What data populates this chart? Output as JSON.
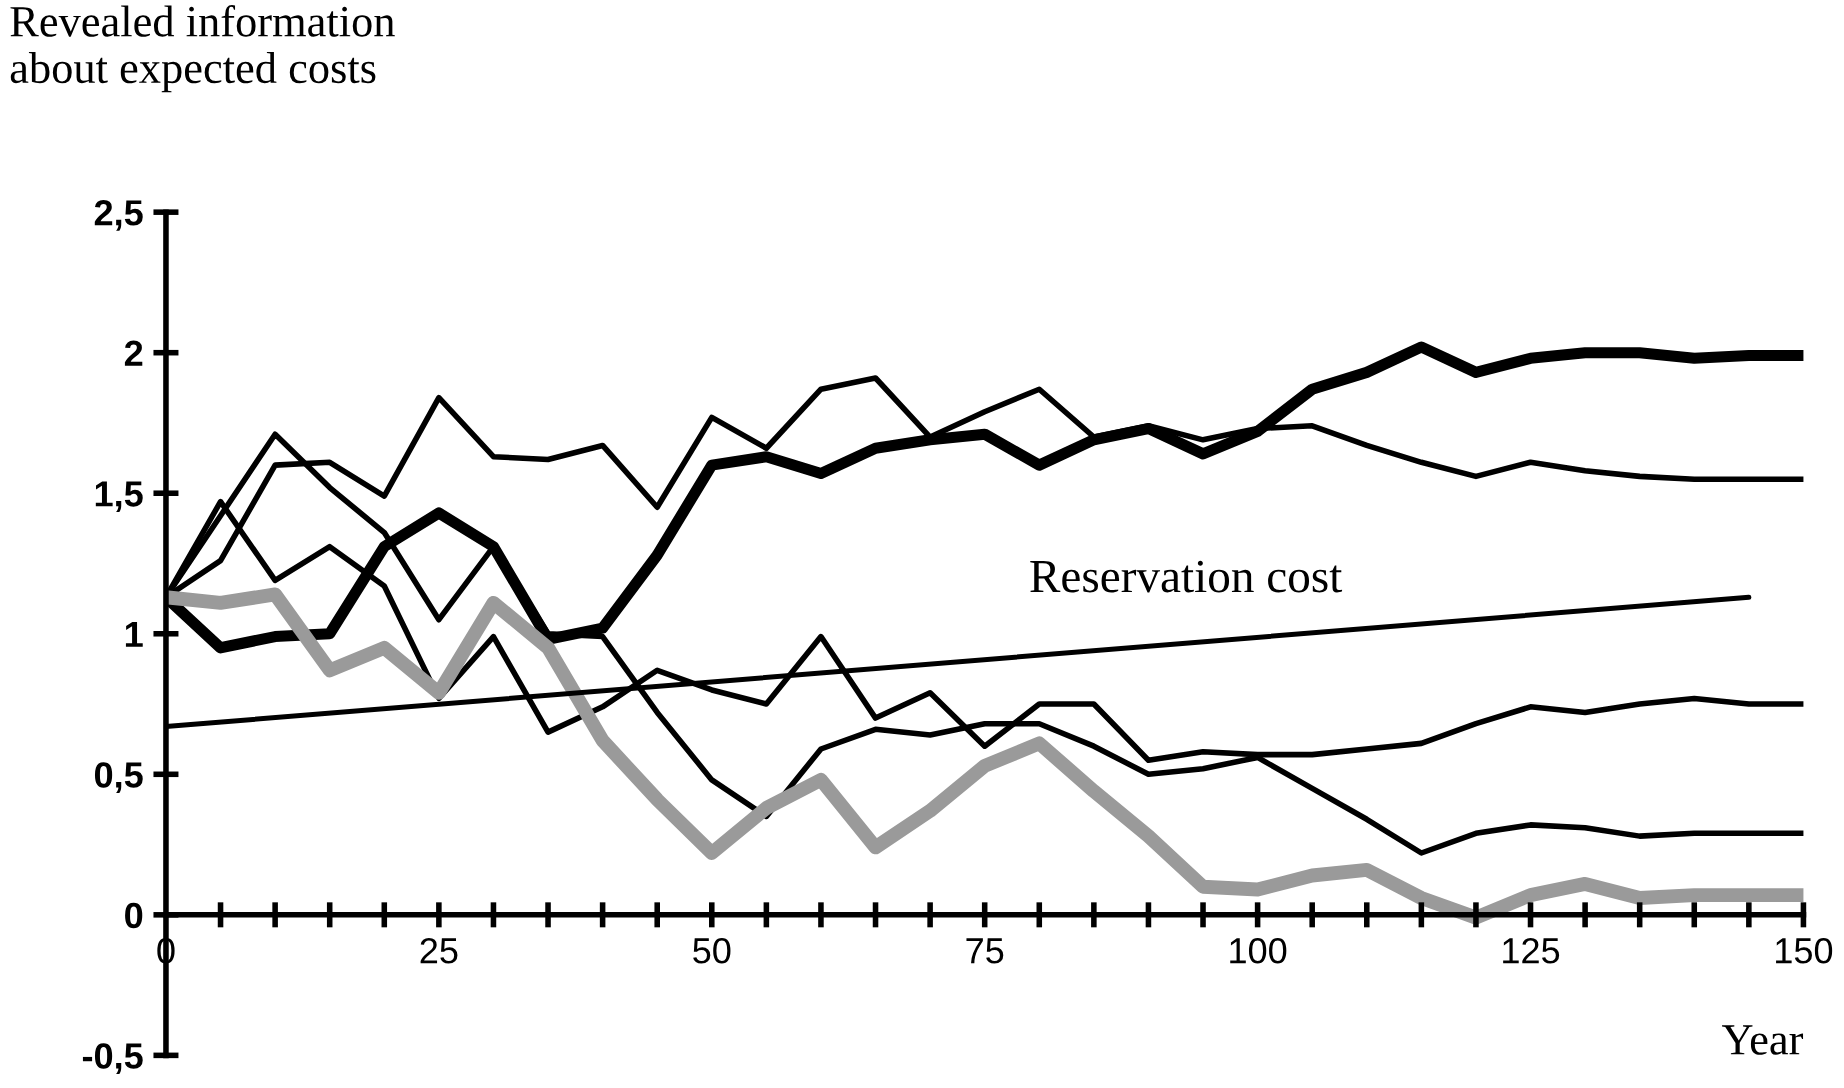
{
  "chart_data": {
    "type": "line",
    "ylabel": "Revealed information\nabout expected costs",
    "xlabel": "Year",
    "x": [
      0,
      5,
      10,
      15,
      20,
      25,
      30,
      35,
      40,
      45,
      50,
      55,
      60,
      65,
      70,
      75,
      80,
      85,
      90,
      95,
      100,
      105,
      110,
      115,
      120,
      125,
      130,
      135,
      140,
      145,
      150
    ],
    "series": [
      {
        "color": "#000000",
        "values": [
          1.13,
          0.95,
          0.99,
          1.0,
          1.31,
          1.43,
          1.31,
          0.98,
          1.02,
          1.28,
          1.6,
          1.63,
          1.57,
          1.66,
          1.69,
          1.71,
          1.6,
          1.69,
          1.73,
          1.64,
          1.72,
          1.87,
          1.93,
          2.02,
          1.93,
          1.98,
          2.0,
          2.0,
          1.98,
          1.99,
          1.99
        ]
      },
      {
        "color": "#000000",
        "values": [
          1.13,
          1.26,
          1.6,
          1.61,
          1.49,
          1.84,
          1.63,
          1.62,
          1.67,
          1.45,
          1.77,
          1.66,
          1.87,
          1.91,
          1.7,
          1.79,
          1.87,
          1.7,
          1.74,
          1.69,
          1.73,
          1.74,
          1.67,
          1.61,
          1.56,
          1.61,
          1.58,
          1.56,
          1.55,
          1.55,
          1.55
        ]
      },
      {
        "color": "#000000",
        "values": [
          1.13,
          1.42,
          1.71,
          1.52,
          1.36,
          1.05,
          1.31,
          1.0,
          0.99,
          0.72,
          0.48,
          0.35,
          0.59,
          0.66,
          0.64,
          0.68,
          0.68,
          0.6,
          0.5,
          0.52,
          0.56,
          0.45,
          0.34,
          0.22,
          0.29,
          0.32,
          0.31,
          0.28,
          0.29,
          0.29,
          0.29
        ]
      },
      {
        "color": "#000000",
        "values": [
          1.13,
          1.47,
          1.19,
          1.31,
          1.17,
          0.77,
          0.99,
          0.65,
          0.74,
          0.87,
          0.8,
          0.75,
          0.99,
          0.7,
          0.79,
          0.6,
          0.75,
          0.75,
          0.55,
          0.58,
          0.57,
          0.57,
          0.59,
          0.61,
          0.68,
          0.74,
          0.72,
          0.75,
          0.77,
          0.75,
          0.75
        ]
      },
      {
        "color": "#9a9a9a",
        "values": [
          1.13,
          1.11,
          1.14,
          0.87,
          0.95,
          0.79,
          1.11,
          0.95,
          0.62,
          0.41,
          0.22,
          0.38,
          0.48,
          0.24,
          0.37,
          0.53,
          0.61,
          0.44,
          0.28,
          0.1,
          0.09,
          0.14,
          0.16,
          0.06,
          -0.01,
          0.07,
          0.11,
          0.06,
          0.07,
          0.07,
          0.07
        ]
      },
      {
        "color": "#000000",
        "x": [
          0,
          145
        ],
        "values": [
          0.67,
          1.13
        ]
      }
    ],
    "annotations": [
      "Reservation cost"
    ],
    "xlim": [
      0,
      150
    ],
    "xticks": [
      0,
      {
        "value": 5,
        "label": null
      },
      {
        "value": 10,
        "label": null
      },
      {
        "value": 15,
        "label": null
      },
      {
        "value": 20,
        "label": null
      },
      25,
      {
        "value": 30,
        "label": null
      },
      {
        "value": 35,
        "label": null
      },
      {
        "value": 40,
        "label": null
      },
      {
        "value": 45,
        "label": null
      },
      50,
      {
        "value": 55,
        "label": null
      },
      {
        "value": 60,
        "label": null
      },
      {
        "value": 65,
        "label": null
      },
      {
        "value": 70,
        "label": null
      },
      75,
      {
        "value": 80,
        "label": null
      },
      {
        "value": 85,
        "label": null
      },
      {
        "value": 90,
        "label": null
      },
      {
        "value": 95,
        "label": null
      },
      100,
      {
        "value": 105,
        "label": null
      },
      {
        "value": 110,
        "label": null
      },
      {
        "value": 115,
        "label": null
      },
      {
        "value": 120,
        "label": null
      },
      125,
      {
        "value": 130,
        "label": null
      },
      {
        "value": 135,
        "label": null
      },
      {
        "value": 140,
        "label": null
      },
      {
        "value": 145,
        "label": null
      },
      150
    ],
    "ylim": [
      -0.5,
      2.5
    ],
    "yticks": [
      {
        "value": -0.5,
        "label": "-0,5"
      },
      0,
      {
        "value": 0.5,
        "label": "0,5"
      },
      1,
      {
        "value": 1.5,
        "label": "1,5"
      },
      2,
      {
        "value": 2.5,
        "label": "2,5"
      }
    ],
    "grid": false,
    "legend": false,
    "marker": "none",
    "line_style": "solid"
  }
}
